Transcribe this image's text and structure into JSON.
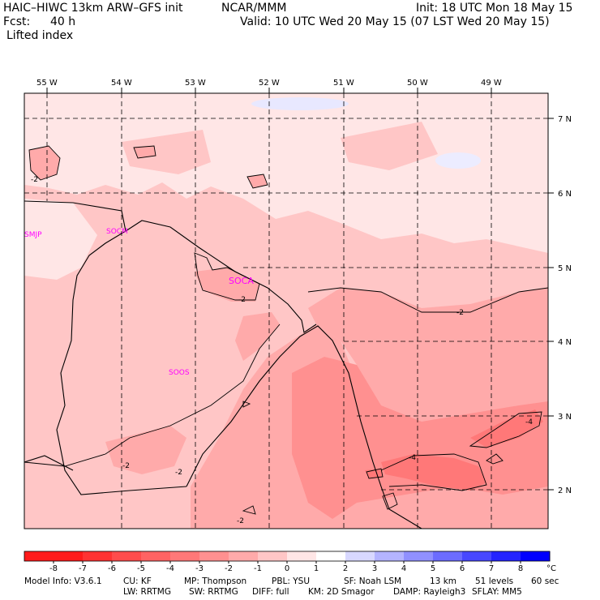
{
  "header": {
    "model": "HAIC–HIWC 13km ARW–GFS init",
    "org": "NCAR/MMM",
    "init": "Init: 18 UTC Mon 18 May 15",
    "fcst_label": "Fcst:",
    "fcst_value": "40 h",
    "valid": "Valid: 10 UTC Wed 20 May 15 (07 LST Wed 20 May 15)",
    "field": "Lifted index"
  },
  "map": {
    "lon_labels": [
      "55 W",
      "54 W",
      "53 W",
      "52 W",
      "51 W",
      "50 W",
      "49 W"
    ],
    "lat_labels": [
      "7 N",
      "6 N",
      "5 N",
      "4 N",
      "3 N",
      "2 N"
    ],
    "stations": [
      {
        "id": "SMJP"
      },
      {
        "id": "SOCM"
      },
      {
        "id": "SOCA"
      },
      {
        "id": "SOOS"
      }
    ],
    "contour_labels": [
      "-2",
      "-2",
      "-2",
      "-2",
      "-2",
      "-2",
      "-4",
      "-4"
    ]
  },
  "colorbar": {
    "ticks": [
      "-8",
      "-7",
      "-6",
      "-5",
      "-4",
      "-3",
      "-2",
      "-1",
      "0",
      "1",
      "2",
      "3",
      "4",
      "5",
      "6",
      "7",
      "8"
    ],
    "unit": "°C",
    "colors": [
      "#ff1b1b",
      "#ff3333",
      "#ff4c4c",
      "#ff6363",
      "#ff7878",
      "#ff9090",
      "#ffaaaa",
      "#ffc6c6",
      "#ffe6e6",
      "#ffffff",
      "#d8d8ff",
      "#b4b4ff",
      "#9090ff",
      "#6c6cff",
      "#4848ff",
      "#2424ff",
      "#0000ff"
    ]
  },
  "footer": {
    "model_info": "Model Info: V3.6.1",
    "cu": "CU: KF",
    "mp": "MP: Thompson",
    "pbl": "PBL: YSU",
    "sf": "SF: Noah LSM",
    "res": "13 km",
    "levels": "51 levels",
    "dt": "60 sec",
    "lw": "LW: RRTMG",
    "sw": "SW: RRTMG",
    "diff": "DIFF: full",
    "km": "KM: 2D Smagor",
    "damp": "DAMP: Rayleigh3",
    "sflay": "SFLAY: MM5"
  }
}
